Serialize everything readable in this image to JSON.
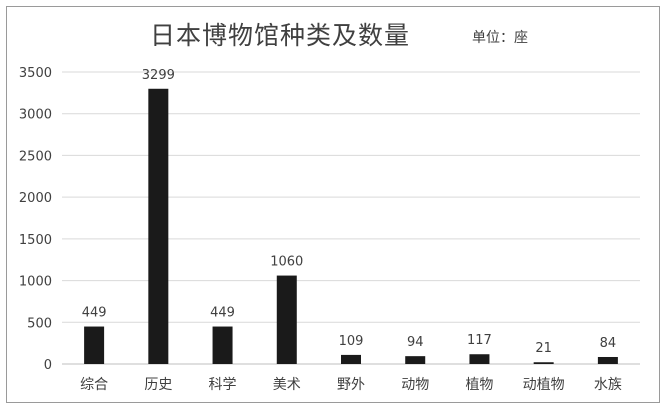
{
  "header": {
    "title": "日本博物馆种类及数量",
    "unit_label": "单位：座"
  },
  "chart_data": {
    "type": "bar",
    "title": "日本博物馆种类及数量",
    "unit": "单位：座",
    "categories": [
      "综合",
      "历史",
      "科学",
      "美术",
      "野外",
      "动物",
      "植物",
      "动植物",
      "水族"
    ],
    "values": [
      449,
      3299,
      449,
      1060,
      109,
      94,
      117,
      21,
      84
    ],
    "data_labels": [
      "449",
      "3299",
      "449",
      "1060",
      "109",
      "94",
      "117",
      "21",
      "84"
    ],
    "y_ticks": [
      "0",
      "500",
      "1000",
      "1500",
      "2000",
      "2500",
      "3000",
      "3500"
    ],
    "ylim": [
      0,
      3500
    ],
    "y_step": 500,
    "grid": true,
    "bar_color": "#1a1a1a",
    "grid_color": "#d9d9d9",
    "axis_color": "#bfbfbf"
  }
}
